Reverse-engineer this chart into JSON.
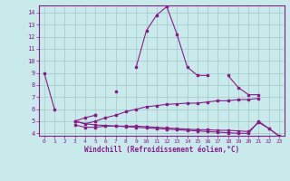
{
  "xlabel": "Windchill (Refroidissement éolien,°C)",
  "x": [
    0,
    1,
    2,
    3,
    4,
    5,
    6,
    7,
    8,
    9,
    10,
    11,
    12,
    13,
    14,
    15,
    16,
    17,
    18,
    19,
    20,
    21,
    22,
    23
  ],
  "line1": [
    9.0,
    6.0,
    null,
    null,
    null,
    5.5,
    null,
    7.5,
    null,
    9.5,
    12.5,
    13.8,
    14.5,
    12.2,
    9.5,
    8.8,
    8.8,
    null,
    8.8,
    7.8,
    7.2,
    7.2,
    null,
    null
  ],
  "line2": [
    null,
    null,
    null,
    5.0,
    5.3,
    5.5,
    null,
    null,
    null,
    null,
    null,
    null,
    null,
    null,
    null,
    null,
    null,
    null,
    null,
    null,
    null,
    null,
    null,
    null
  ],
  "line3": [
    null,
    null,
    null,
    5.0,
    4.8,
    5.0,
    5.3,
    5.5,
    5.8,
    6.0,
    6.2,
    6.3,
    6.4,
    6.45,
    6.5,
    6.5,
    6.6,
    6.7,
    6.7,
    6.8,
    6.8,
    6.9,
    null,
    null
  ],
  "line4": [
    null,
    null,
    null,
    4.7,
    4.5,
    4.5,
    4.6,
    4.6,
    4.6,
    4.6,
    4.55,
    4.5,
    4.45,
    4.4,
    4.35,
    4.3,
    4.3,
    4.25,
    4.25,
    4.2,
    4.15,
    4.9,
    4.4,
    3.8
  ],
  "line5": [
    null,
    null,
    null,
    5.0,
    4.8,
    4.7,
    4.65,
    4.6,
    4.55,
    4.5,
    4.45,
    4.4,
    4.35,
    4.3,
    4.25,
    4.2,
    4.15,
    4.1,
    4.05,
    4.0,
    4.0,
    5.0,
    4.4,
    3.75
  ],
  "bg_color": "#c8eaea",
  "line_color": "#8b1a8b",
  "grid_color": "#a0c8c8",
  "ylim": [
    3.8,
    14.6
  ],
  "yticks": [
    4,
    5,
    6,
    7,
    8,
    9,
    10,
    11,
    12,
    13,
    14
  ],
  "xlim": [
    -0.5,
    23.5
  ],
  "xticks": [
    0,
    1,
    2,
    3,
    4,
    5,
    6,
    7,
    8,
    9,
    10,
    11,
    12,
    13,
    14,
    15,
    16,
    17,
    18,
    19,
    20,
    21,
    22,
    23
  ]
}
